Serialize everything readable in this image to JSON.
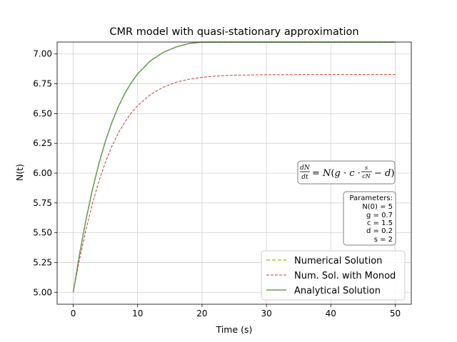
{
  "chart_data": {
    "type": "line",
    "title": "CMR model with quasi-stationary approximation",
    "xlabel": "Time (s)",
    "ylabel": "N(t)",
    "xlim": [
      -2.5,
      52.5
    ],
    "ylim": [
      4.9,
      7.1
    ],
    "xticks": [
      0,
      10,
      20,
      30,
      40,
      50
    ],
    "yticks": [
      5.0,
      5.25,
      5.5,
      5.75,
      6.0,
      6.25,
      6.5,
      6.75,
      7.0
    ],
    "xtick_labels": [
      "0",
      "10",
      "20",
      "30",
      "40",
      "50"
    ],
    "ytick_labels": [
      "5.00",
      "5.25",
      "5.50",
      "5.75",
      "6.00",
      "6.25",
      "6.50",
      "6.75",
      "7.00"
    ],
    "grid": true,
    "legend_position": "bottom-right",
    "series": [
      {
        "name": "Numerical Solution",
        "color": "#9acd32",
        "style": "dashed",
        "x": [
          0,
          1,
          2,
          3,
          4,
          5,
          6,
          7,
          8,
          9,
          10,
          12,
          14,
          16,
          18,
          20,
          22,
          25,
          30,
          35,
          40,
          45,
          50
        ],
        "values": [
          5.0,
          5.326,
          5.614,
          5.866,
          6.083,
          6.268,
          6.425,
          6.557,
          6.667,
          6.758,
          6.833,
          6.943,
          7.014,
          7.059,
          7.088,
          7.107,
          7.119,
          7.128,
          7.133,
          7.134,
          7.135,
          7.135,
          7.135
        ]
      },
      {
        "name": "Num. Sol. with Monod",
        "color": "#cd3b3b",
        "style": "dashed",
        "x": [
          0,
          1,
          2,
          3,
          4,
          5,
          6,
          7,
          8,
          9,
          10,
          12,
          14,
          16,
          18,
          20,
          22,
          25,
          30,
          35,
          40,
          45,
          50
        ],
        "values": [
          5.0,
          5.282,
          5.531,
          5.748,
          5.934,
          6.092,
          6.225,
          6.336,
          6.428,
          6.504,
          6.566,
          6.66,
          6.722,
          6.763,
          6.788,
          6.804,
          6.814,
          6.822,
          6.826,
          6.827,
          6.827,
          6.827,
          6.827
        ]
      },
      {
        "name": "Analytical Solution",
        "color": "#6b9b5a",
        "style": "solid",
        "x": [
          0,
          1,
          2,
          3,
          4,
          5,
          6,
          7,
          8,
          9,
          10,
          12,
          14,
          16,
          18,
          20,
          22,
          25,
          30,
          35,
          40,
          45,
          50
        ],
        "values": [
          5.0,
          5.326,
          5.614,
          5.866,
          6.083,
          6.268,
          6.425,
          6.557,
          6.667,
          6.758,
          6.833,
          6.943,
          7.014,
          7.059,
          7.088,
          7.107,
          7.119,
          7.128,
          7.133,
          7.134,
          7.135,
          7.135,
          7.135
        ]
      }
    ],
    "annotations": {
      "equation": "dN/dt = N(g · c · s/(cN) − d)",
      "params_title": "Parameters:",
      "params": [
        "N(0) = 5",
        "g = 0.7",
        "c = 1.5",
        "d = 0.2",
        "s = 2"
      ]
    }
  }
}
